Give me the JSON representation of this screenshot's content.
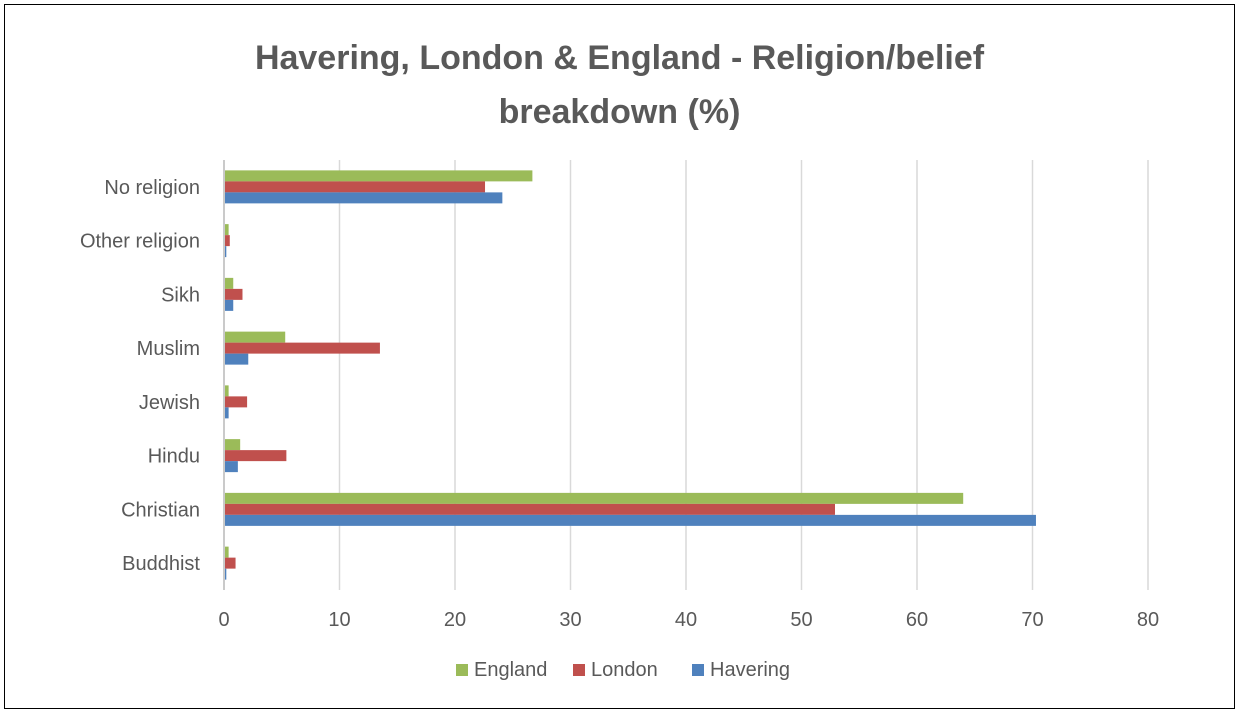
{
  "chart_data": {
    "type": "bar",
    "orientation": "horizontal",
    "title": "Havering, London & England - Religion/belief\nbreakdown (%)",
    "categories": [
      "No religion",
      "Other religion",
      "Sikh",
      "Muslim",
      "Jewish",
      "Hindu",
      "Christian",
      "Buddhist"
    ],
    "series": [
      {
        "name": "England",
        "color": "#9bbb59",
        "values": [
          26.7,
          0.4,
          0.8,
          5.3,
          0.4,
          1.4,
          64.0,
          0.4
        ]
      },
      {
        "name": "London",
        "color": "#c0504d",
        "values": [
          22.6,
          0.5,
          1.6,
          13.5,
          2.0,
          5.4,
          52.9,
          1.0
        ]
      },
      {
        "name": "Havering",
        "color": "#4f81bd",
        "values": [
          24.1,
          0.2,
          0.8,
          2.1,
          0.4,
          1.2,
          70.3,
          0.2
        ]
      }
    ],
    "xlim": [
      0,
      80
    ],
    "xticks": [
      0,
      10,
      20,
      30,
      40,
      50,
      60,
      70,
      80
    ],
    "grid": true,
    "legend": "bottom",
    "xlabel": "",
    "ylabel": ""
  }
}
